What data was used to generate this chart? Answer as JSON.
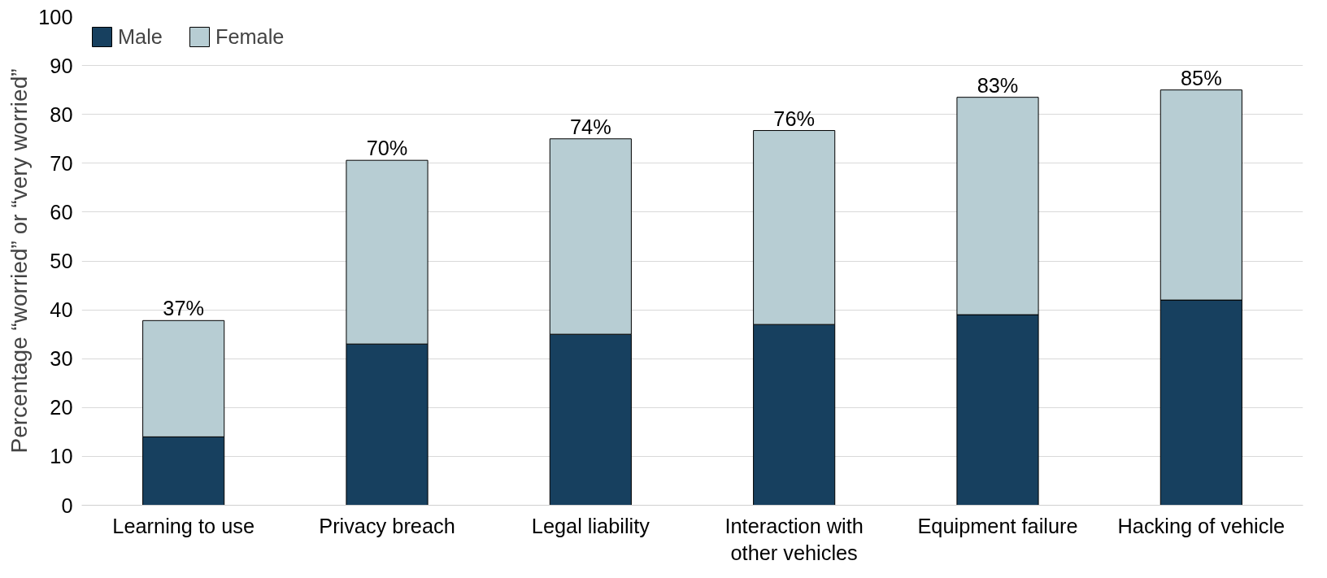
{
  "chart_data": {
    "type": "bar",
    "stacked": true,
    "ylabel": "Percentage “worried” or “very worried”",
    "categories": [
      "Learning to use",
      "Privacy breach",
      "Legal liability",
      "Interaction with other vehicles",
      "Equipment failure",
      "Hacking of vehicle"
    ],
    "series": [
      {
        "name": "Male",
        "color": "#17405f",
        "values": [
          14,
          33,
          35,
          37,
          39,
          42
        ]
      },
      {
        "name": "Female",
        "color": "#b7cdd3",
        "values": [
          23.8,
          37.6,
          40,
          39.7,
          44.5,
          43
        ]
      }
    ],
    "totals": [
      "37%",
      "70%",
      "74%",
      "76%",
      "83%",
      "85%"
    ],
    "ylim": [
      0,
      100
    ],
    "yticks": [
      0,
      10,
      20,
      30,
      40,
      50,
      60,
      70,
      80,
      90,
      100
    ],
    "grid": "y",
    "legend": "top left"
  }
}
